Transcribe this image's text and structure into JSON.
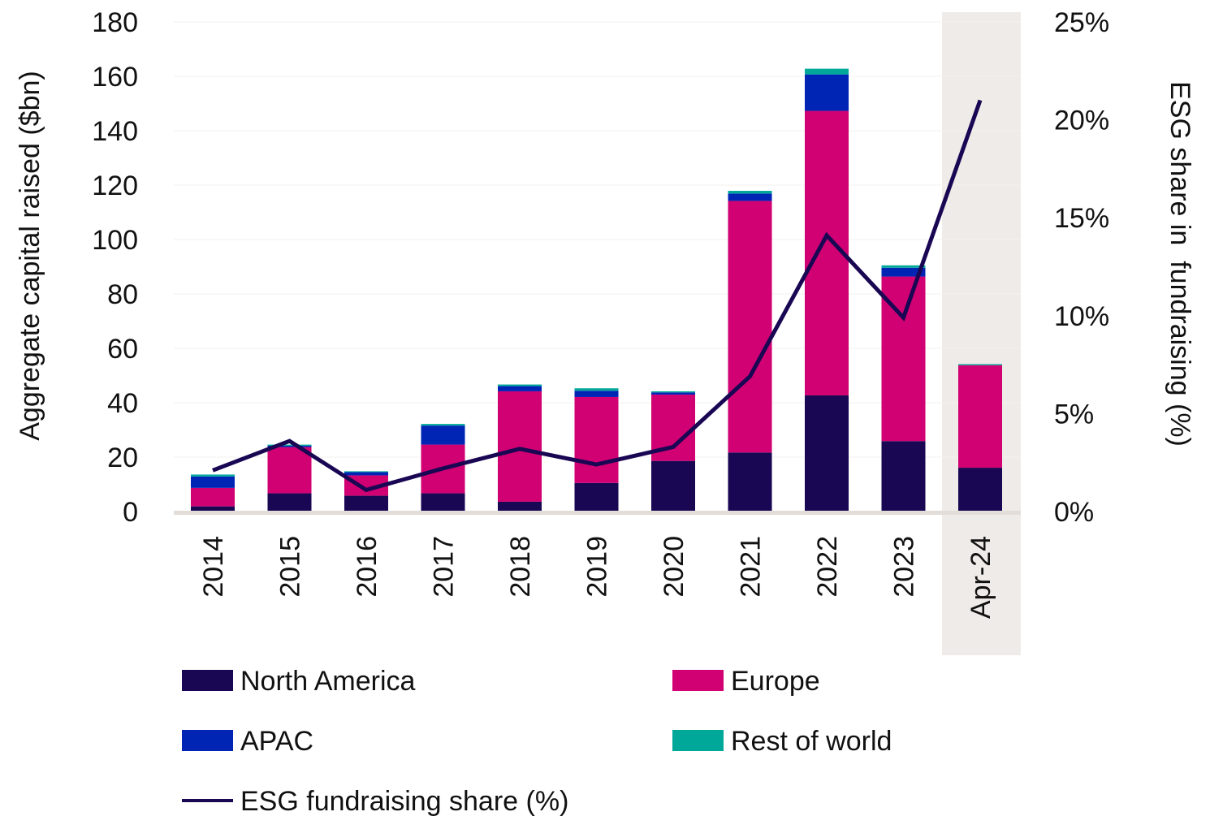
{
  "chart_data": {
    "type": "bar",
    "stacked": true,
    "categories": [
      "2014",
      "2015",
      "2016",
      "2017",
      "2018",
      "2019",
      "2020",
      "2021",
      "2022",
      "2023",
      "Apr-24"
    ],
    "highlighted_category": "Apr-24",
    "ylabel": "Aggregate capital raised ($bn)",
    "ylim": [
      0,
      180
    ],
    "yticks": [
      "0",
      "20",
      "40",
      "60",
      "80",
      "100",
      "120",
      "140",
      "160",
      "180"
    ],
    "y2label": "ESG share in  fundraising (%)",
    "y2lim": [
      0,
      25
    ],
    "y2ticks": [
      "0%",
      "5%",
      "10%",
      "15%",
      "20%",
      "25%"
    ],
    "grid": true,
    "legend_position": "bottom",
    "series": [
      {
        "name": "North America",
        "color": "#1a0754",
        "values": [
          1.9,
          6.7,
          5.8,
          6.7,
          3.6,
          10.5,
          18.6,
          21.7,
          42.7,
          25.9,
          16.1
        ]
      },
      {
        "name": "Europe",
        "color": "#d10073",
        "values": [
          6.8,
          17.0,
          7.5,
          17.9,
          40.6,
          31.6,
          24.4,
          92.5,
          104.6,
          60.5,
          37.7
        ]
      },
      {
        "name": "APAC",
        "color": "#0025b5",
        "values": [
          4.2,
          0.5,
          1.2,
          7.0,
          1.9,
          2.3,
          0.8,
          2.7,
          13.4,
          3.2,
          0.0
        ]
      },
      {
        "name": "Rest of world",
        "color": "#00a89a",
        "values": [
          0.7,
          0.4,
          0.3,
          0.6,
          0.6,
          0.9,
          0.4,
          1.0,
          2.1,
          0.9,
          0.4
        ]
      }
    ],
    "line_series": {
      "name": "ESG fundraising share (%)",
      "color": "#1a0754",
      "axis": "right",
      "values": [
        2.1,
        3.6,
        1.1,
        2.2,
        3.2,
        2.4,
        3.3,
        6.9,
        14.1,
        9.9,
        21.0
      ]
    }
  }
}
